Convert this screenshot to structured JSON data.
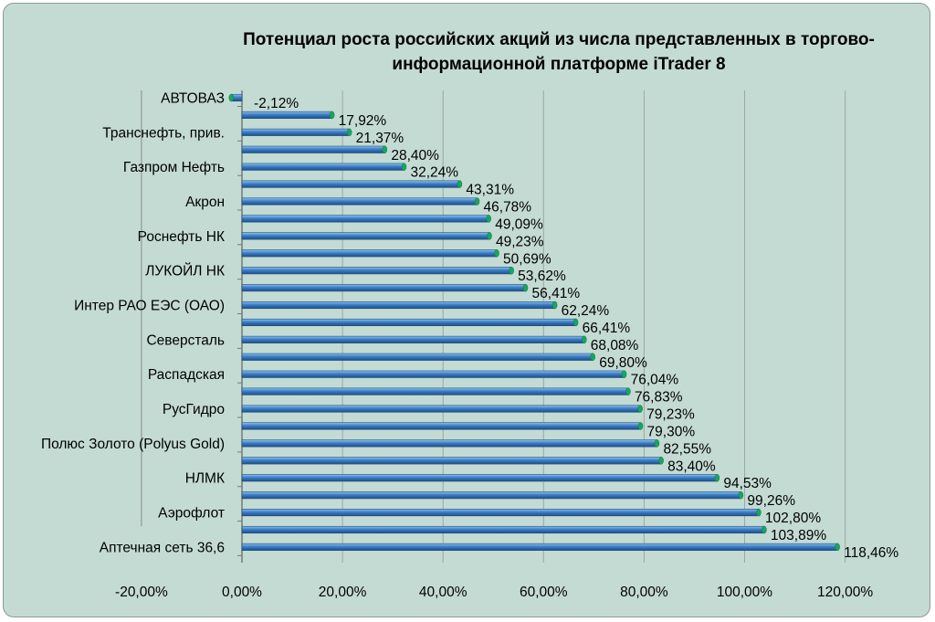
{
  "chart_data": {
    "type": "bar",
    "orientation": "horizontal",
    "title": "Потенциал роста российских акций из числа представленных в торгово-информационной платформе iTrader 8",
    "title_lines": [
      "Потенциал роста российских акций из числа представленных в торгово-",
      "информационной платформе iTrader 8"
    ],
    "categories": [
      "АВТОВАЗ",
      "",
      "Транснефть, прив.",
      "",
      "Газпром Нефть",
      "",
      "Акрон",
      "",
      "Роснефть НК",
      "",
      "ЛУКОЙЛ НК",
      "",
      "Интер РАО ЕЭС (ОАО)",
      "",
      "Северсталь",
      "",
      "Распадская",
      "",
      "РусГидро",
      "",
      "Полюс Золото (Polyus Gold)",
      "",
      "НЛМК",
      "",
      "Аэрофлот",
      "",
      "Аптечная сеть 36,6"
    ],
    "values": [
      -2.12,
      17.92,
      21.37,
      28.4,
      32.24,
      43.31,
      46.78,
      49.09,
      49.23,
      50.69,
      53.62,
      56.41,
      62.24,
      66.41,
      68.08,
      69.8,
      76.04,
      76.83,
      79.23,
      79.3,
      82.55,
      83.4,
      94.53,
      99.26,
      102.8,
      103.89,
      118.46
    ],
    "value_labels": [
      "-2,12%",
      "17,92%",
      "21,37%",
      "28,40%",
      "32,24%",
      "43,31%",
      "46,78%",
      "49,09%",
      "49,23%",
      "50,69%",
      "53,62%",
      "56,41%",
      "62,24%",
      "66,41%",
      "68,08%",
      "69,80%",
      "76,04%",
      "76,83%",
      "79,23%",
      "79,30%",
      "82,55%",
      "83,40%",
      "94,53%",
      "99,26%",
      "102,80%",
      "103,89%",
      "118,46%"
    ],
    "x_ticks": [
      -20,
      0,
      20,
      40,
      60,
      80,
      100,
      120
    ],
    "x_tick_labels": [
      "-20,00%",
      "0,00%",
      "20,00%",
      "40,00%",
      "60,00%",
      "80,00%",
      "100,00%",
      "120,00%"
    ],
    "xlim": [
      -20,
      120
    ],
    "grid": "vertical",
    "legend": "none",
    "colors": {
      "background": "#c4dbd3",
      "bar_fill": "#3c7ec4",
      "bar_edge": "#1e4e86",
      "bar_highlight": "#8ec2ee",
      "bar_cap": "#19a463",
      "gridline": "#9aa8a2"
    }
  }
}
